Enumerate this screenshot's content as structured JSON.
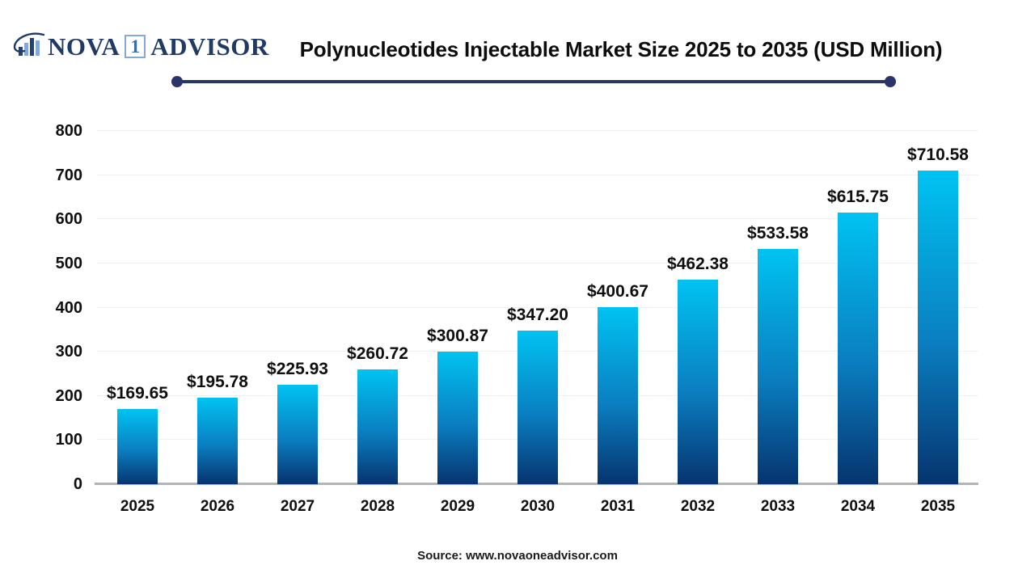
{
  "logo": {
    "name_part1": "NOVA",
    "name_box": "1",
    "name_part2": "ADVISOR",
    "icon": "bar-chart-swoosh-icon",
    "colors": {
      "navy": "#203a66",
      "light_blue": "#82a9da"
    }
  },
  "header": {
    "title": "Polynucleotides Injectable Market Size 2025 to 2035 (USD Million)"
  },
  "chart_data": {
    "type": "bar",
    "title": "Polynucleotides Injectable Market Size 2025 to 2035 (USD Million)",
    "unit": "USD Million",
    "categories": [
      "2025",
      "2026",
      "2027",
      "2028",
      "2029",
      "2030",
      "2031",
      "2032",
      "2033",
      "2034",
      "2035"
    ],
    "values": [
      169.65,
      195.78,
      225.93,
      260.72,
      300.87,
      347.2,
      400.67,
      462.38,
      533.58,
      615.75,
      710.58
    ],
    "value_labels": [
      "$169.65",
      "$195.78",
      "$225.93",
      "$260.72",
      "$300.87",
      "$347.20",
      "$400.67",
      "$462.38",
      "$533.58",
      "$615.75",
      "$710.58"
    ],
    "ylim": [
      0,
      800
    ],
    "ytick_step": 100,
    "yticks": [
      0,
      100,
      200,
      300,
      400,
      500,
      600,
      700,
      800
    ],
    "grid": true,
    "legend": "none",
    "bar_gradient_top": "#00c3f2",
    "bar_gradient_bottom": "#06346f",
    "gridline_color": "#f0f1f3",
    "baseline_color": "#b1b5bb"
  },
  "footer": {
    "source": "Source: www.novaoneadvisor.com"
  }
}
